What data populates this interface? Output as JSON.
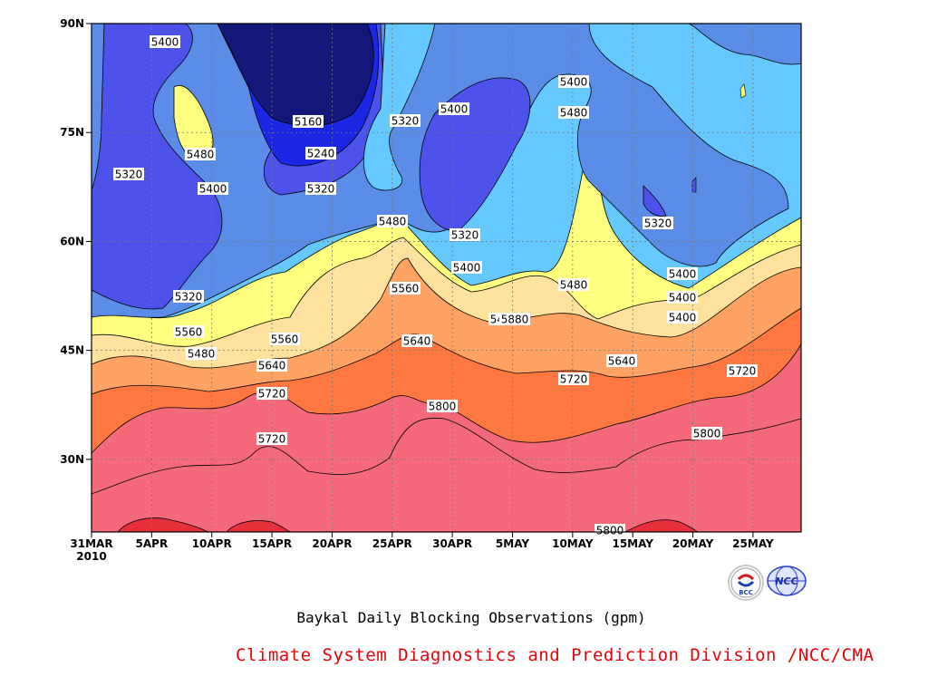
{
  "chart_data": {
    "type": "contour",
    "title": "Baykal Daily Blocking Observations (gpm)",
    "xlabel": "",
    "ylabel": "",
    "x_ticks": [
      "31MAR\n2010",
      "5APR",
      "10APR",
      "15APR",
      "20APR",
      "25APR",
      "30APR",
      "5MAY",
      "10MAY",
      "15MAY",
      "20MAY",
      "25MAY"
    ],
    "y_ticks": [
      "90N",
      "75N",
      "60N",
      "45N",
      "30N"
    ],
    "y_range": [
      20,
      90
    ],
    "x_range_days": [
      0,
      59
    ],
    "contour_levels": [
      5160,
      5240,
      5320,
      5400,
      5480,
      5560,
      5640,
      5720,
      5800,
      5880
    ],
    "band_colors": [
      "#14177a",
      "#1a28e6",
      "#4d52ea",
      "#5a8ce8",
      "#65c8ff",
      "#ffff80",
      "#ffe29e",
      "#ffa364",
      "#ff7842",
      "#f46a7a",
      "#e8303c"
    ],
    "contour_labels": [
      "5400",
      "5480",
      "5400",
      "5320",
      "5160",
      "5240",
      "5320",
      "5320",
      "5400",
      "5400",
      "5480",
      "5320",
      "5480",
      "5320",
      "5400",
      "5400",
      "5480",
      "5400",
      "5480",
      "5560",
      "5320",
      "5400",
      "5480",
      "5560",
      "5640",
      "5560",
      "5640",
      "5720",
      "5720",
      "5640",
      "5720",
      "5800",
      "5800",
      "5720",
      "5800",
      "5880"
    ]
  },
  "footer": {
    "subtitle": "Baykal Daily Blocking Observations (gpm)",
    "credit": "Climate System Diagnostics and Prediction Division /NCC/CMA"
  },
  "logos": {
    "left": "BCC",
    "right": "NCC"
  }
}
